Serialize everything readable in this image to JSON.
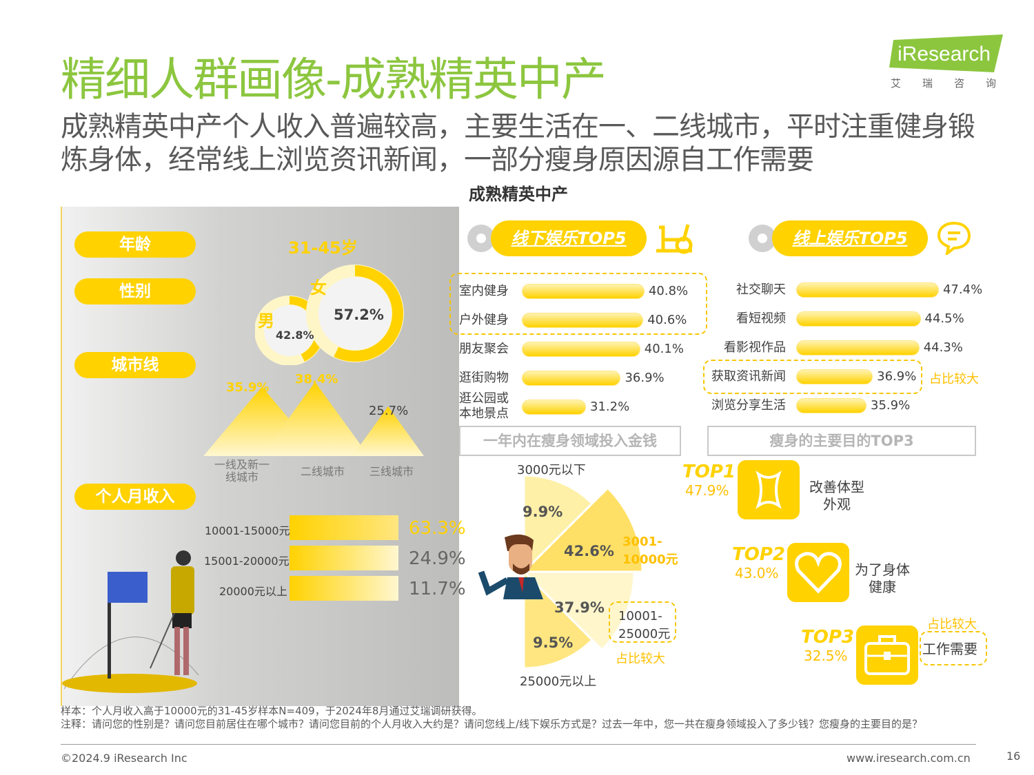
{
  "title": "精细人群画像-成熟精英中产",
  "subtitle": "成熟精英中产个人收入普遍较高，主要生活在一、二线城市，平时注重健身锻炼身体，经常线上浏览资讯新闻，一部分瘦身原因源自工作需要",
  "center_title": "成熟精英中产",
  "logo": {
    "text": "iResearch",
    "cn": "艾瑞咨询"
  },
  "left": {
    "pills": {
      "age": "年龄",
      "gender": "性别",
      "city": "城市线",
      "income": "个人月收入"
    },
    "age_value": "31-45岁",
    "gender": {
      "male_label": "男",
      "female_label": "女",
      "male": "42.8%",
      "female": "57.2%"
    }
  },
  "offline": {
    "title": "线下娱乐TOP5"
  },
  "online": {
    "title": "线上娱乐TOP5",
    "note": "占比较大"
  },
  "spend": {
    "title": "一年内在瘦身领域投入金钱",
    "note": "占比较大"
  },
  "purpose": {
    "title": "瘦身的主要目的TOP3",
    "note": "占比较大",
    "items": [
      {
        "rank": "TOP1",
        "value": "47.9%",
        "label": "改善体型\n外观"
      },
      {
        "rank": "TOP2",
        "value": "43.0%",
        "label": "为了身体\n健康"
      },
      {
        "rank": "TOP3",
        "value": "32.5%",
        "label": "工作需要"
      }
    ]
  },
  "footer": {
    "sample": "样本：个人月收入高于10000元的31-45岁样本N=409，于2024年8月通过艾瑞调研获得。",
    "note": "注释：请问您的性别是？请问您目前居住在哪个城市？请问您目前的个人月收入大约是？请问您线上/线下娱乐方式是？过去一年中，您一共在瘦身领域投入了多少钱？您瘦身的主要目的是？",
    "copyright": "©2024.9 iResearch Inc",
    "url": "www.iresearch.com.cn",
    "page": "16"
  },
  "chart_data": [
    {
      "type": "bar",
      "title": "城市线",
      "categories": [
        "一线及新一线城市",
        "二线城市",
        "三线城市"
      ],
      "values": [
        35.9,
        38.4,
        25.7
      ],
      "labels": [
        "35.9%",
        "38.4%",
        "25.7%"
      ]
    },
    {
      "type": "bar",
      "title": "个人月收入",
      "categories": [
        "10001-15000元",
        "15001-20000元",
        "20000元以上"
      ],
      "values": [
        63.3,
        24.9,
        11.7
      ],
      "labels": [
        "63.3%",
        "24.9%",
        "11.7%"
      ]
    },
    {
      "type": "bar",
      "title": "线下娱乐TOP5",
      "categories": [
        "室内健身",
        "户外健身",
        "朋友聚会",
        "逛街购物",
        "逛公园或本地景点"
      ],
      "display": [
        "室内健身",
        "户外健身",
        "朋友聚会",
        "逛街购物",
        "逛公园或\n本地景点"
      ],
      "values": [
        40.8,
        40.6,
        40.1,
        36.9,
        31.2
      ],
      "labels": [
        "40.8%",
        "40.6%",
        "40.1%",
        "36.9%",
        "31.2%"
      ]
    },
    {
      "type": "bar",
      "title": "线上娱乐TOP5",
      "categories": [
        "社交聊天",
        "看短视频",
        "看影视作品",
        "获取资讯新闻",
        "浏览分享生活"
      ],
      "values": [
        47.4,
        44.5,
        44.3,
        36.9,
        35.9
      ],
      "labels": [
        "47.4%",
        "44.5%",
        "44.3%",
        "36.9%",
        "35.9%"
      ]
    },
    {
      "type": "pie",
      "title": "一年内在瘦身领域投入金钱",
      "categories": [
        "3000元以下",
        "3001-10000元",
        "10001-25000元",
        "25000元以上"
      ],
      "display": [
        "3000元以下",
        "3001-\n10000元",
        "10001-\n25000元",
        "25000元以上"
      ],
      "values": [
        9.9,
        42.6,
        37.9,
        9.5
      ],
      "labels": [
        "9.9%",
        "42.6%",
        "37.9%",
        "9.5%"
      ]
    }
  ]
}
